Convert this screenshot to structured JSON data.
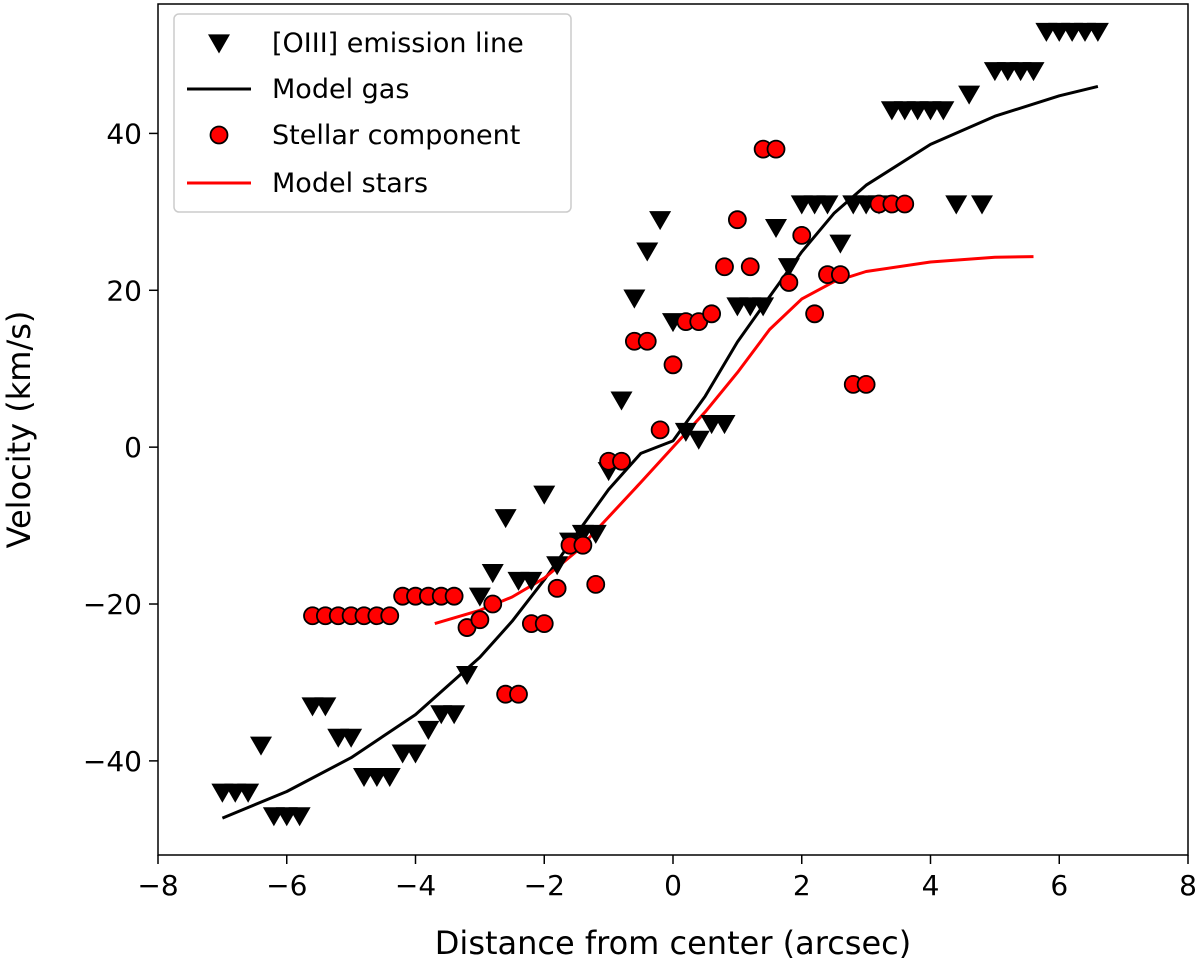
{
  "chart_data": {
    "type": "scatter",
    "title": "",
    "xlabel": "Distance from center (arcsec)",
    "ylabel": "Velocity (km/s)",
    "xlim": [
      -8,
      8
    ],
    "ylim": [
      -52,
      56.5
    ],
    "xticks": [
      -8,
      -6,
      -4,
      -2,
      0,
      2,
      4,
      6,
      8
    ],
    "xtick_labels": [
      "−8",
      "−6",
      "−4",
      "−2",
      "0",
      "2",
      "4",
      "6",
      "8"
    ],
    "yticks": [
      -40,
      -20,
      0,
      20,
      40
    ],
    "ytick_labels": [
      "−40",
      "−20",
      "0",
      "20",
      "40"
    ],
    "grid": false,
    "legend_position": "top-left",
    "series": [
      {
        "name": "[OIII] emission line",
        "kind": "scatter",
        "marker": "triangle-down",
        "color": "#000000",
        "x": [
          -7.0,
          -6.8,
          -6.6,
          -6.4,
          -6.2,
          -6.0,
          -5.8,
          -5.6,
          -5.4,
          -5.2,
          -5.0,
          -4.8,
          -4.6,
          -4.4,
          -4.2,
          -4.0,
          -3.8,
          -3.6,
          -3.4,
          -3.2,
          -3.0,
          -2.8,
          -2.6,
          -2.4,
          -2.2,
          -2.0,
          -1.8,
          -1.6,
          -1.4,
          -1.2,
          -1.0,
          -0.8,
          -0.6,
          -0.4,
          -0.2,
          0.0,
          0.2,
          0.4,
          0.6,
          0.8,
          1.0,
          1.2,
          1.4,
          1.6,
          1.8,
          2.0,
          2.2,
          2.4,
          2.6,
          2.8,
          3.0,
          3.2,
          3.4,
          3.6,
          3.8,
          4.0,
          4.2,
          4.4,
          4.6,
          4.8,
          5.0,
          5.2,
          5.4,
          5.6,
          5.8,
          6.0,
          6.2,
          6.4,
          6.6
        ],
        "y": [
          -44,
          -44,
          -44,
          -38,
          -47,
          -47,
          -47,
          -33,
          -33,
          -37,
          -37,
          -42,
          -42,
          -42,
          -39,
          -39,
          -36,
          -34,
          -34,
          -29,
          -19,
          -16,
          -9,
          -17,
          -17,
          -6,
          -15,
          -12,
          -11,
          -11,
          -3,
          6,
          19,
          25,
          29,
          16,
          2,
          1,
          3,
          3,
          18,
          18,
          18,
          28,
          23,
          31,
          31,
          31,
          26,
          31,
          31,
          31,
          43,
          43,
          43,
          43,
          43,
          31,
          45,
          31,
          48,
          48,
          48,
          48,
          53,
          53,
          53,
          53,
          53
        ]
      },
      {
        "name": "Model gas",
        "kind": "line",
        "color": "#000000",
        "x": [
          -7.0,
          -6.0,
          -5.0,
          -4.0,
          -3.0,
          -2.5,
          -2.0,
          -1.5,
          -1.0,
          -0.5,
          0.0,
          0.5,
          1.0,
          1.5,
          2.0,
          2.5,
          3.0,
          4.0,
          5.0,
          6.0,
          6.6
        ],
        "y": [
          -47.3,
          -43.9,
          -39.6,
          -34.1,
          -26.8,
          -22.2,
          -16.9,
          -11.1,
          -5.4,
          -0.8,
          0.8,
          6.5,
          13.4,
          19.2,
          24.9,
          29.8,
          33.4,
          38.6,
          42.2,
          44.8,
          46.0
        ]
      },
      {
        "name": "Stellar component",
        "kind": "scatter",
        "marker": "circle",
        "color": "#ff0000",
        "edgecolor": "#000000",
        "x": [
          -5.6,
          -5.4,
          -5.2,
          -5.0,
          -4.8,
          -4.6,
          -4.4,
          -4.2,
          -4.0,
          -3.8,
          -3.6,
          -3.4,
          -3.2,
          -3.0,
          -2.8,
          -2.6,
          -2.4,
          -2.2,
          -2.0,
          -1.8,
          -1.6,
          -1.4,
          -1.2,
          -1.0,
          -0.8,
          -0.6,
          -0.4,
          -0.2,
          0.0,
          0.2,
          0.4,
          0.6,
          0.8,
          1.0,
          1.2,
          1.4,
          1.6,
          1.8,
          2.0,
          2.2,
          2.4,
          2.6,
          2.8,
          3.0,
          3.2,
          3.4,
          3.6
        ],
        "y": [
          -21.5,
          -21.5,
          -21.5,
          -21.5,
          -21.5,
          -21.5,
          -21.5,
          -19,
          -19,
          -19,
          -19,
          -19,
          -23,
          -22,
          -20,
          -31.5,
          -31.5,
          -22.5,
          -22.5,
          -18,
          -12.5,
          -12.5,
          -17.5,
          -1.8,
          -1.8,
          13.5,
          13.5,
          2.2,
          10.5,
          16,
          16,
          17,
          23,
          29,
          23,
          38,
          38,
          21,
          27,
          17,
          22,
          22,
          8,
          8,
          31,
          31,
          31
        ]
      },
      {
        "name": "Model stars",
        "kind": "line",
        "color": "#ff0000",
        "x": [
          -3.7,
          -3.0,
          -2.5,
          -2.0,
          -1.5,
          -1.0,
          -0.5,
          0.0,
          0.5,
          1.0,
          1.5,
          2.0,
          2.5,
          3.0,
          4.0,
          5.0,
          5.6
        ],
        "y": [
          -22.5,
          -20.8,
          -19.1,
          -16.7,
          -13.3,
          -8.9,
          -4.5,
          0.0,
          4.5,
          9.5,
          15.0,
          18.9,
          21.1,
          22.4,
          23.6,
          24.2,
          24.3
        ]
      }
    ]
  }
}
